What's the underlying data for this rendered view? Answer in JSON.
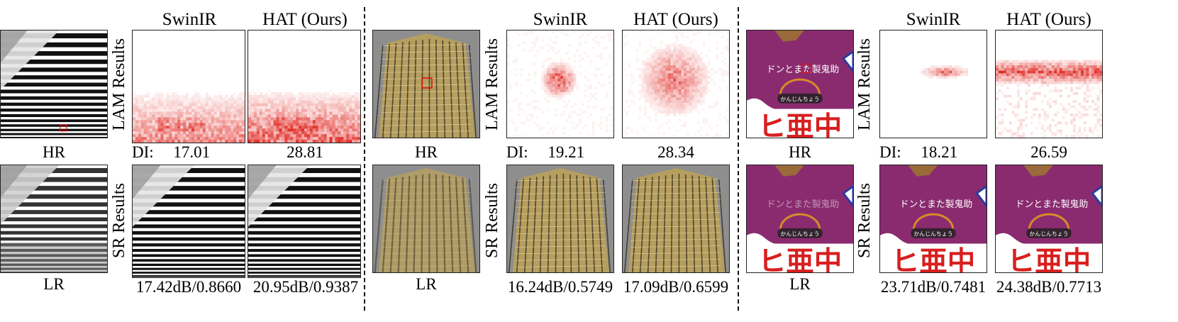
{
  "panels": [
    {
      "id": "stairs",
      "headers": [
        "SwinIR",
        "HAT (Ours)"
      ],
      "hr_label": "HR",
      "lr_label": "LR",
      "lam_row_label": "LAM Results",
      "sr_row_label": "SR Results",
      "di_prefix": "DI:",
      "di_swinir": "17.01",
      "di_hat": "28.81",
      "metric_swinir": "17.42dB/0.8660",
      "metric_hat": "20.95dB/0.9387"
    },
    {
      "id": "building",
      "headers": [
        "SwinIR",
        "HAT (Ours)"
      ],
      "hr_label": "HR",
      "lr_label": "LR",
      "lam_row_label": "LAM Results",
      "sr_row_label": "SR Results",
      "di_prefix": "DI:",
      "di_swinir": "19.21",
      "di_hat": "28.34",
      "metric_swinir": "16.24dB/0.5749",
      "metric_hat": "17.09dB/0.6599"
    },
    {
      "id": "manga",
      "headers": [
        "SwinIR",
        "HAT (Ours)"
      ],
      "hr_label": "HR",
      "lr_label": "LR",
      "lam_row_label": "LAM Results",
      "sr_row_label": "SR Results",
      "di_prefix": "DI:",
      "di_swinir": "18.21",
      "di_hat": "26.59",
      "metric_swinir": "23.71dB/0.7481",
      "metric_hat": "24.38dB/0.7713",
      "manga_text": "ドンとまた製鬼助",
      "manga_subtext": "かんじんちょう",
      "manga_big_text": "ヒ亜中"
    }
  ],
  "colors": {
    "heat": "#e0201a",
    "manga_purple": "#8a2b6f",
    "manga_red": "#d81e1e",
    "building_glass": "#b9a05a",
    "stairs_dark": "#111111"
  }
}
